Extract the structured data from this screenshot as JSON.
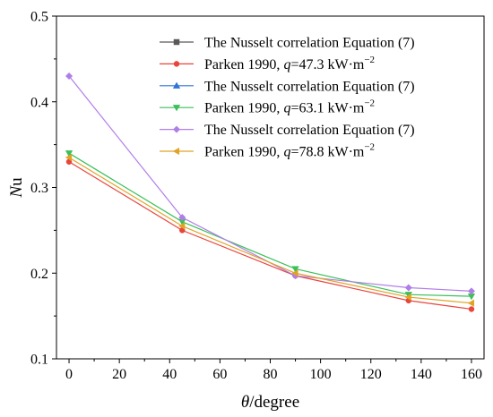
{
  "chart_data": {
    "type": "line",
    "xlabel": {
      "symbol": "θ",
      "rest": "/degree"
    },
    "ylabel": {
      "symbol": "N",
      "rest": "u"
    },
    "xlim": [
      -5,
      165
    ],
    "ylim": [
      0.1,
      0.5
    ],
    "xticks": [
      "0",
      "20",
      "40",
      "60",
      "80",
      "100",
      "120",
      "140",
      "160"
    ],
    "yticks": [
      "0.1",
      "0.2",
      "0.3",
      "0.4",
      "0.5"
    ],
    "grid": false,
    "legend_position": "top-right",
    "x": [
      0,
      45,
      90,
      135,
      160
    ],
    "series": [
      {
        "name": "The Nusselt correlation Equation (7)",
        "marker": "square",
        "color": "#595959",
        "values": [
          null,
          null,
          null,
          null,
          null
        ]
      },
      {
        "name": "Parken 1990, q=47.3 kW·m−2",
        "marker": "circle",
        "color": "#e8453c",
        "values": [
          0.33,
          0.25,
          0.197,
          0.168,
          0.158
        ],
        "legend_parts": {
          "pre": "Parken 1990, ",
          "q": "q",
          "mid": "=47.3 kW·m",
          "sup": "−2"
        }
      },
      {
        "name": "The Nusselt correlation Equation (7)",
        "marker": "triangle-up",
        "color": "#2e75d6",
        "values": [
          null,
          null,
          null,
          null,
          null
        ]
      },
      {
        "name": "Parken 1990, q=63.1 kW·m−2",
        "marker": "triangle-down",
        "color": "#3cc05a",
        "values": [
          0.34,
          0.26,
          0.205,
          0.175,
          0.173
        ],
        "legend_parts": {
          "pre": "Parken 1990, ",
          "q": "q",
          "mid": "=63.1 kW·m",
          "sup": "−2"
        }
      },
      {
        "name": "The Nusselt correlation Equation (7)",
        "marker": "diamond",
        "color": "#b07ee8",
        "values": [
          0.43,
          0.265,
          0.197,
          0.183,
          0.179
        ]
      },
      {
        "name": "Parken 1990, q=78.8 kW·m−2",
        "marker": "triangle-left",
        "color": "#e0a325",
        "values": [
          0.335,
          0.255,
          0.2,
          0.172,
          0.165
        ],
        "legend_parts": {
          "pre": "Parken 1990, ",
          "q": "q",
          "mid": "=78.8 kW·m",
          "sup": "−2"
        }
      }
    ]
  }
}
